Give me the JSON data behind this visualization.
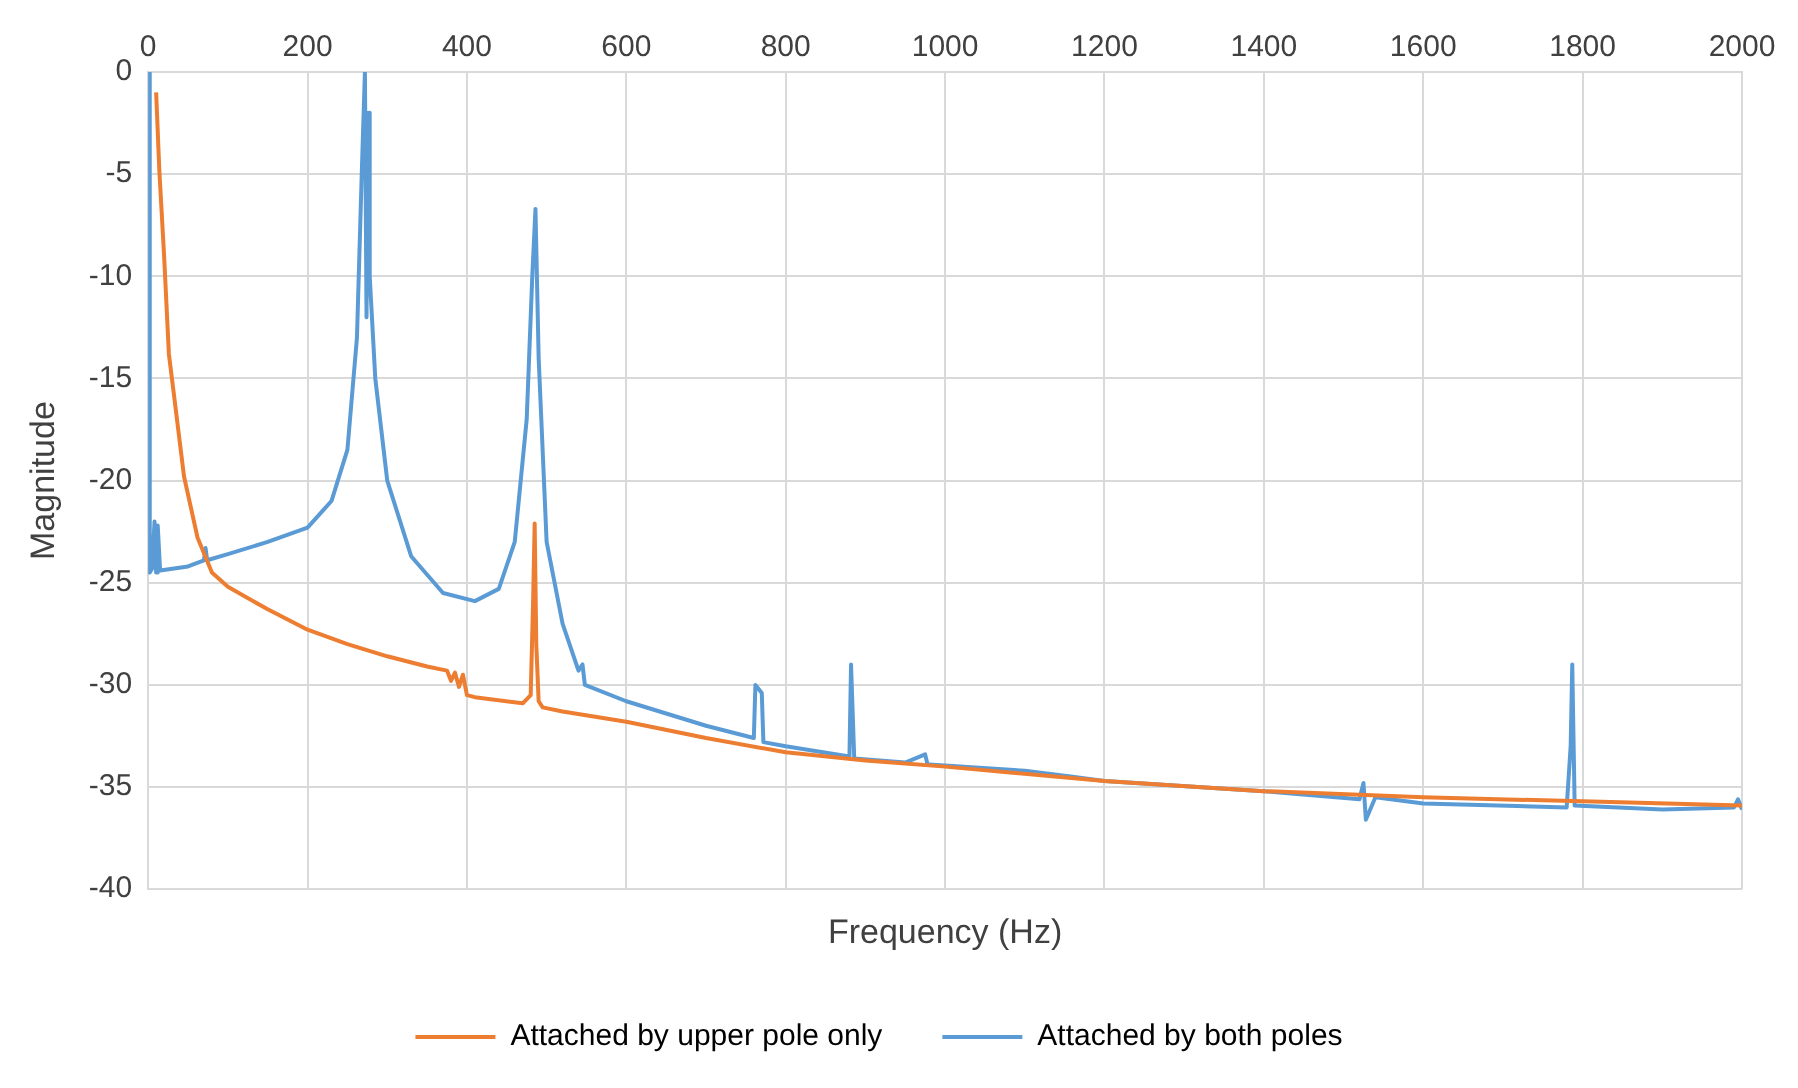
{
  "chart_data": {
    "type": "line",
    "xlabel": "Frequency (Hz)",
    "ylabel": "Magnitude",
    "xlim": [
      0,
      2000
    ],
    "ylim": [
      -40,
      0
    ],
    "xticks": [
      0,
      200,
      400,
      600,
      800,
      1000,
      1200,
      1400,
      1600,
      1800,
      2000
    ],
    "yticks": [
      -40,
      -35,
      -30,
      -25,
      -20,
      -15,
      -10,
      -5,
      0
    ],
    "grid": true,
    "legend": "bottom",
    "marker": "none",
    "line_style": "solid",
    "series": [
      {
        "name": "Attached by upper pole only",
        "color": "#ed7d31",
        "x": [
          10,
          14,
          20,
          26,
          33,
          45,
          62,
          80,
          100,
          150,
          200,
          250,
          300,
          350,
          375,
          380,
          385,
          390,
          395,
          400,
          410,
          470,
          480,
          483,
          485,
          487,
          490,
          495,
          520,
          600,
          700,
          800,
          900,
          1000,
          1200,
          1400,
          1600,
          1800,
          2000
        ],
        "values": [
          -1,
          -4.8,
          -9,
          -13.8,
          -16,
          -19.8,
          -22.8,
          -24.5,
          -25.2,
          -26.3,
          -27.3,
          -28,
          -28.6,
          -29.1,
          -29.3,
          -29.8,
          -29.4,
          -30.1,
          -29.5,
          -30.5,
          -30.6,
          -30.9,
          -30.5,
          -26,
          -22.1,
          -28,
          -30.8,
          -31.1,
          -31.3,
          -31.8,
          -32.6,
          -33.3,
          -33.7,
          -34,
          -34.7,
          -35.2,
          -35.5,
          -35.7,
          -35.9
        ]
      },
      {
        "name": "Attached by both poles",
        "color": "#5b9bd5",
        "x": [
          0,
          2,
          5,
          8,
          10,
          12,
          15,
          50,
          70,
          72,
          74,
          100,
          150,
          200,
          230,
          250,
          262,
          268,
          272,
          274,
          276,
          278,
          285,
          300,
          330,
          370,
          410,
          440,
          460,
          475,
          482,
          486,
          490,
          500,
          520,
          540,
          545,
          548,
          600,
          700,
          760,
          762,
          770,
          772,
          800,
          880,
          882,
          886,
          950,
          975,
          978,
          980,
          1100,
          1160,
          1200,
          1400,
          1520,
          1525,
          1528,
          1540,
          1600,
          1780,
          1785,
          1787,
          1790,
          1900,
          1990,
          1995,
          2000
        ],
        "values": [
          0,
          -24.5,
          -24.3,
          -22,
          -24.5,
          -22.2,
          -24.4,
          -24.2,
          -23.9,
          -23.3,
          -23.9,
          -23.6,
          -23,
          -22.3,
          -21,
          -18.5,
          -13,
          -5,
          0,
          -12,
          -2,
          -10,
          -15,
          -20,
          -23.7,
          -25.5,
          -25.9,
          -25.3,
          -23,
          -17,
          -10,
          -6.7,
          -14,
          -23,
          -27,
          -29.3,
          -29,
          -30,
          -30.8,
          -32,
          -32.6,
          -30,
          -30.4,
          -32.8,
          -33,
          -33.5,
          -29,
          -33.6,
          -33.8,
          -33.4,
          -33.9,
          -33.9,
          -34.2,
          -34.5,
          -34.7,
          -35.2,
          -35.6,
          -34.8,
          -36.6,
          -35.5,
          -35.8,
          -36,
          -33,
          -29,
          -35.9,
          -36.1,
          -36,
          -35.6,
          -36.1
        ]
      }
    ]
  }
}
